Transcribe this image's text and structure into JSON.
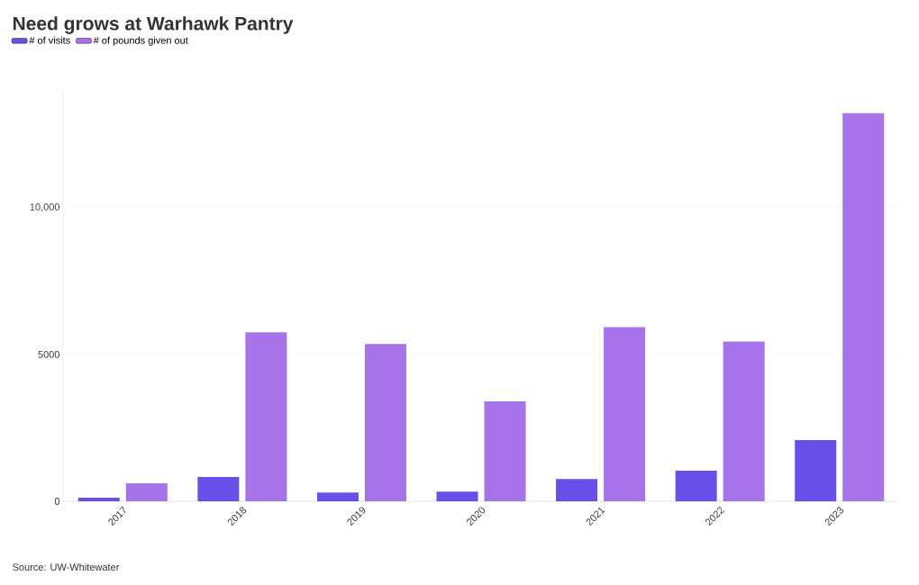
{
  "chart_data": {
    "type": "bar",
    "title": "Need grows at Warhawk Pantry",
    "categories": [
      "2017",
      "2018",
      "2019",
      "2020",
      "2021",
      "2022",
      "2023"
    ],
    "series": [
      {
        "name": "# of visits",
        "color": "#6650e8",
        "values": [
          120,
          830,
          300,
          330,
          760,
          1040,
          2080
        ]
      },
      {
        "name": "# of pounds given out",
        "color": "#a673e8",
        "values": [
          610,
          5750,
          5350,
          3400,
          5930,
          5440,
          13210
        ]
      }
    ],
    "ylim": [
      0,
      14000
    ],
    "yticks": [
      0,
      5000,
      {
        "value": 10000,
        "label": "10,000"
      }
    ],
    "grid": "y",
    "legend": "top left",
    "annotations": [
      "Source: UW-Whitewater"
    ]
  }
}
